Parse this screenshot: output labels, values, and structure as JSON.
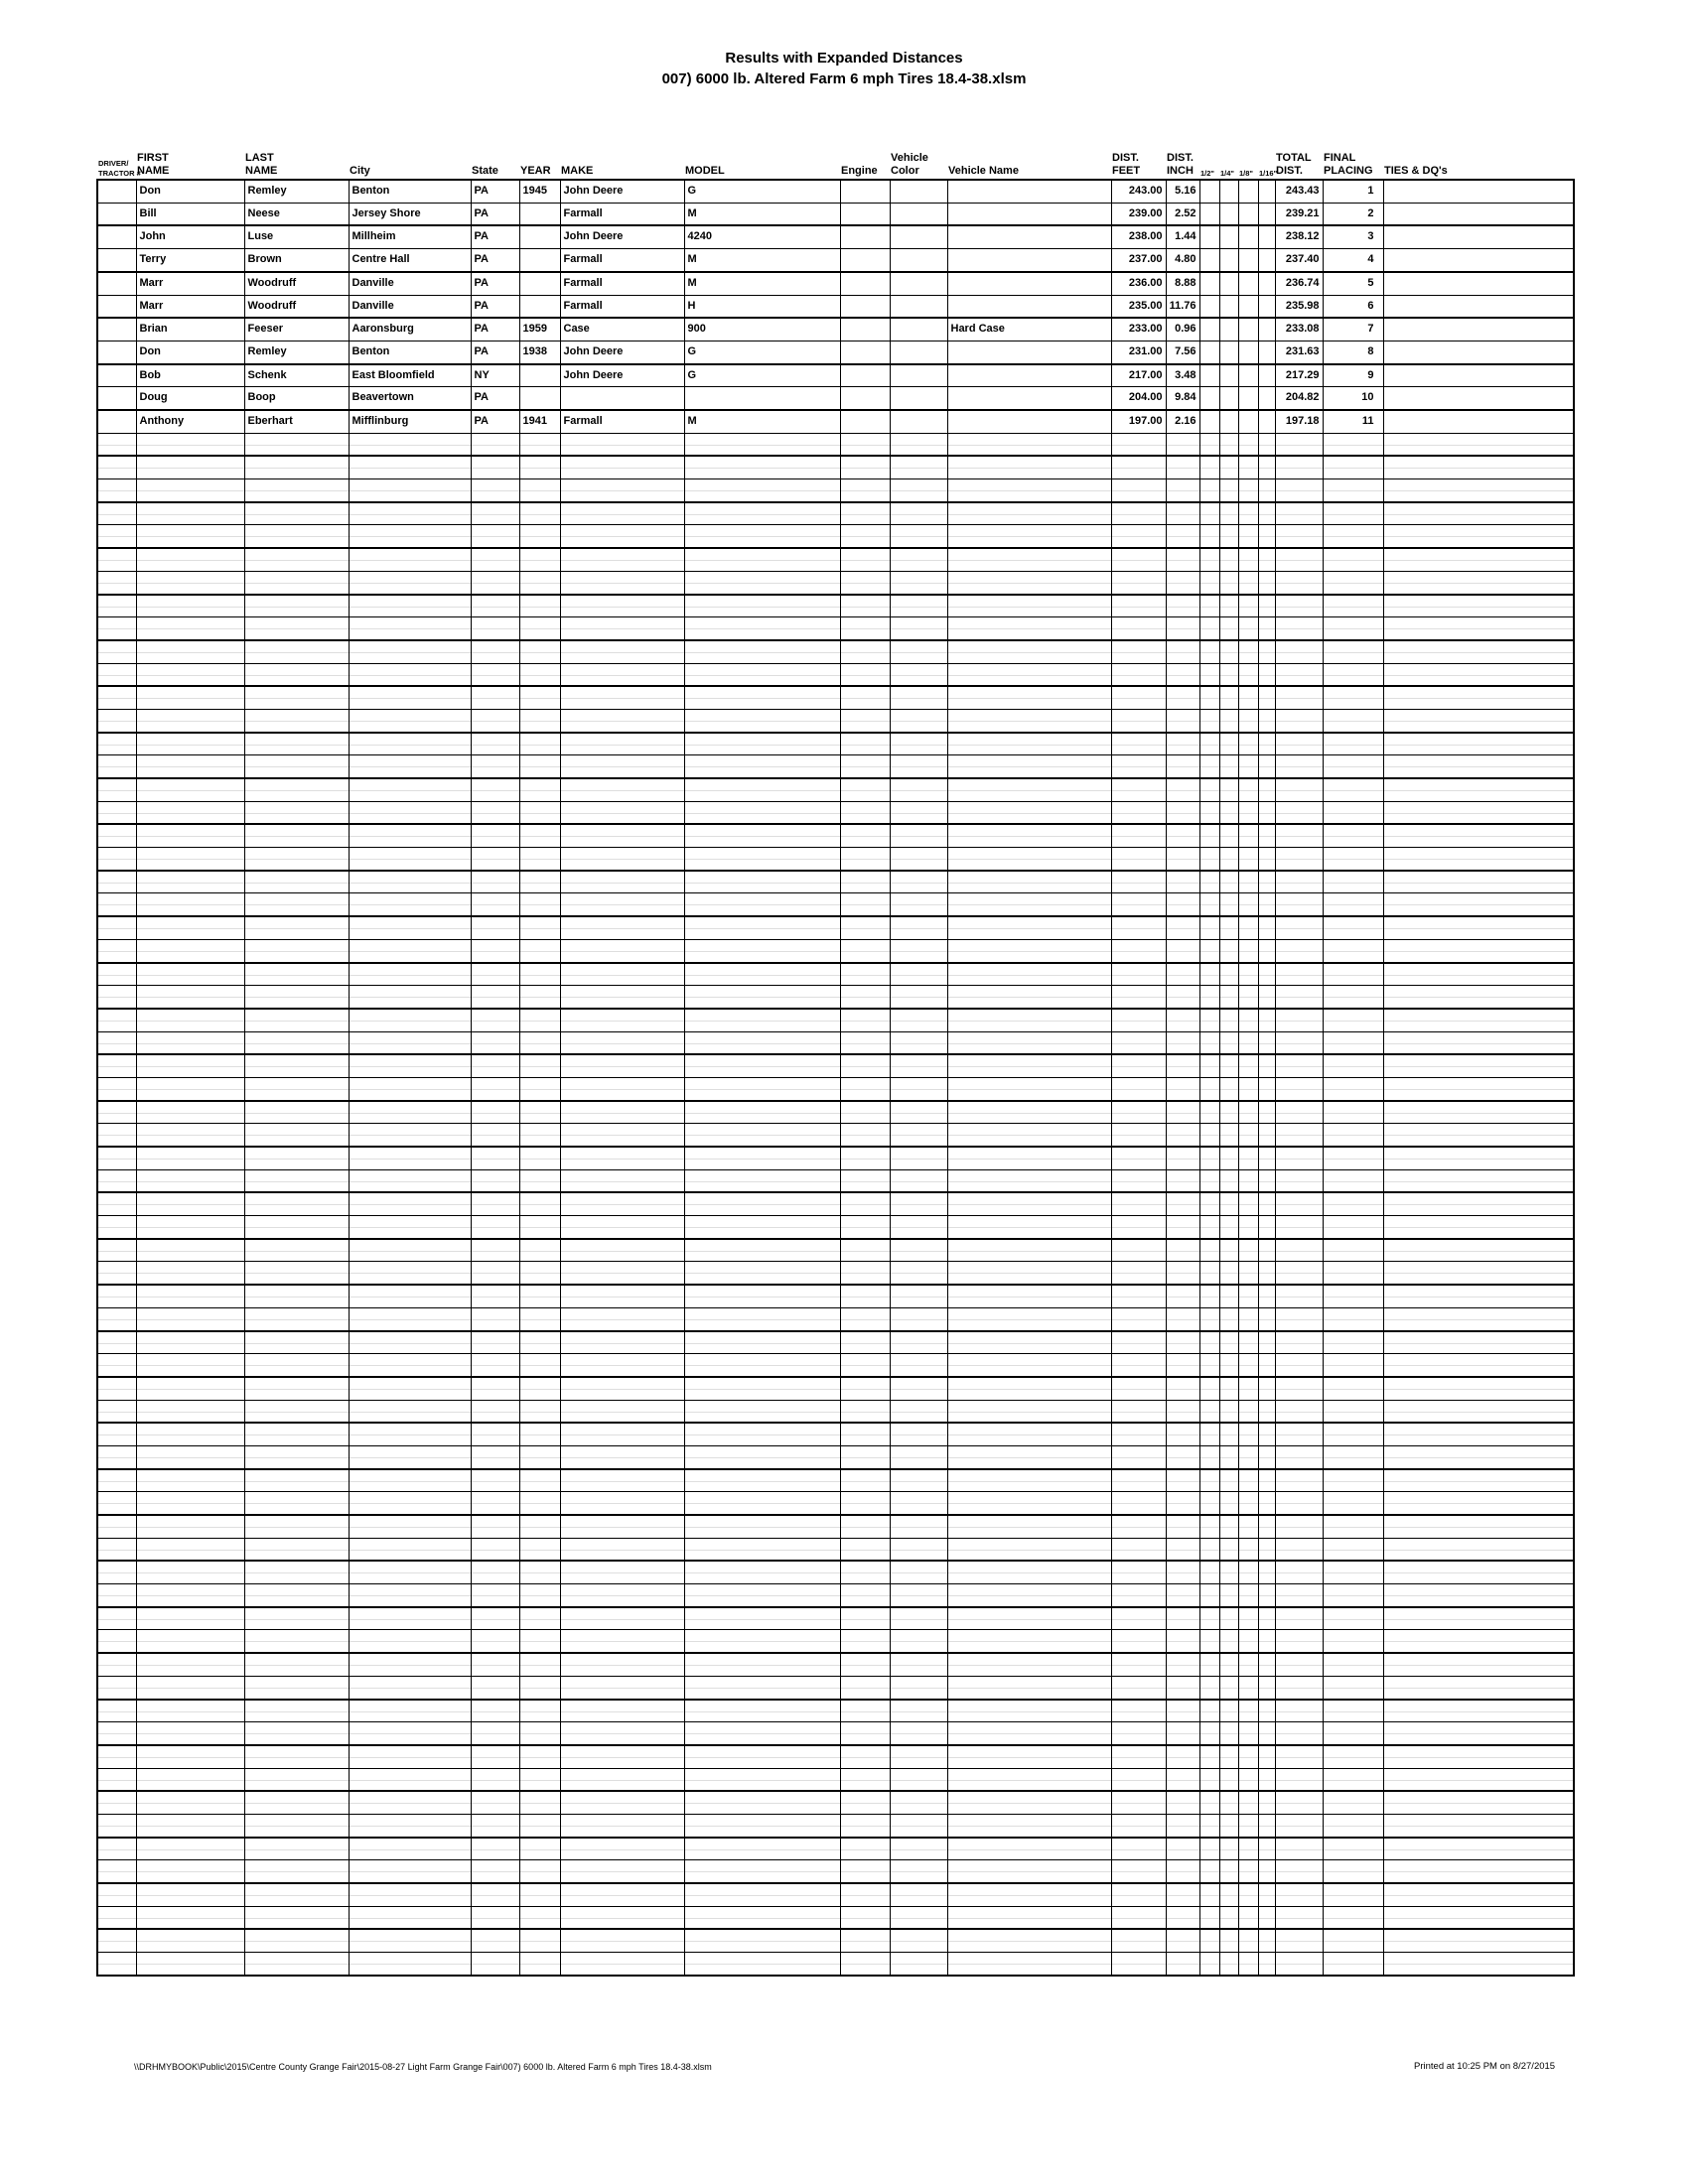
{
  "title": {
    "line1": "Results with Expanded Distances",
    "line2": "007) 6000 lb. Altered Farm 6 mph Tires 18.4-38.xlsm"
  },
  "table": {
    "columns": [
      {
        "key": "id",
        "label": "DRIVER/\nTRACTOR #",
        "width": 39,
        "align": "l",
        "tiny": true
      },
      {
        "key": "first",
        "label": "FIRST\nNAME",
        "width": 109,
        "align": "l",
        "tiny": false
      },
      {
        "key": "last",
        "label": "LAST\nNAME",
        "width": 105,
        "align": "l",
        "tiny": false
      },
      {
        "key": "city",
        "label": "City",
        "width": 123,
        "align": "l",
        "tiny": false
      },
      {
        "key": "state",
        "label": "State",
        "width": 49,
        "align": "l",
        "tiny": false
      },
      {
        "key": "year",
        "label": "YEAR",
        "width": 41,
        "align": "l",
        "tiny": false
      },
      {
        "key": "make",
        "label": "MAKE",
        "width": 125,
        "align": "l",
        "tiny": false
      },
      {
        "key": "model",
        "label": "MODEL",
        "width": 157,
        "align": "l",
        "tiny": false
      },
      {
        "key": "engine",
        "label": "Engine",
        "width": 50,
        "align": "l",
        "tiny": false
      },
      {
        "key": "color",
        "label": "Vehicle\nColor",
        "width": 58,
        "align": "l",
        "tiny": false
      },
      {
        "key": "name",
        "label": "Vehicle Name",
        "width": 165,
        "align": "l",
        "tiny": false
      },
      {
        "key": "feet",
        "label": "DIST.\nFEET",
        "width": 55,
        "align": "r",
        "tiny": false
      },
      {
        "key": "inch",
        "label": "DIST.\nINCH",
        "width": 34,
        "align": "r",
        "tiny": false
      },
      {
        "key": "half",
        "label": "1/2\"",
        "width": 20,
        "align": "l",
        "tiny": true
      },
      {
        "key": "quarter",
        "label": "1/4\"",
        "width": 19,
        "align": "l",
        "tiny": true
      },
      {
        "key": "eighth",
        "label": "1/8\"",
        "width": 20,
        "align": "l",
        "tiny": true
      },
      {
        "key": "sixteenth",
        "label": "1/16\"",
        "width": 17,
        "align": "l",
        "tiny": true
      },
      {
        "key": "total",
        "label": "TOTAL\nDIST.",
        "width": 48,
        "align": "r",
        "tiny": false
      },
      {
        "key": "placing",
        "label": "FINAL\nPLACING",
        "width": 61,
        "align": "r",
        "tiny": false
      },
      {
        "key": "ties",
        "label": "TIES & DQ's",
        "width": 192,
        "align": "l",
        "tiny": false
      }
    ],
    "rows": [
      {
        "id": "",
        "first": "Don",
        "last": "Remley",
        "city": "Benton",
        "state": "PA",
        "year": "1945",
        "make": "John Deere",
        "model": "G",
        "engine": "",
        "color": "",
        "name": "",
        "feet": "243.00",
        "inch": "5.16",
        "half": "",
        "quarter": "",
        "eighth": "",
        "sixteenth": "",
        "total": "243.43",
        "placing": "1",
        "ties": ""
      },
      {
        "id": "",
        "first": "Bill",
        "last": "Neese",
        "city": "Jersey Shore",
        "state": "PA",
        "year": "",
        "make": "Farmall",
        "model": "M",
        "engine": "",
        "color": "",
        "name": "",
        "feet": "239.00",
        "inch": "2.52",
        "half": "",
        "quarter": "",
        "eighth": "",
        "sixteenth": "",
        "total": "239.21",
        "placing": "2",
        "ties": ""
      },
      {
        "id": "",
        "first": "John",
        "last": "Luse",
        "city": "Millheim",
        "state": "PA",
        "year": "",
        "make": "John Deere",
        "model": "4240",
        "engine": "",
        "color": "",
        "name": "",
        "feet": "238.00",
        "inch": "1.44",
        "half": "",
        "quarter": "",
        "eighth": "",
        "sixteenth": "",
        "total": "238.12",
        "placing": "3",
        "ties": ""
      },
      {
        "id": "",
        "first": "Terry",
        "last": "Brown",
        "city": "Centre Hall",
        "state": "PA",
        "year": "",
        "make": "Farmall",
        "model": "M",
        "engine": "",
        "color": "",
        "name": "",
        "feet": "237.00",
        "inch": "4.80",
        "half": "",
        "quarter": "",
        "eighth": "",
        "sixteenth": "",
        "total": "237.40",
        "placing": "4",
        "ties": ""
      },
      {
        "id": "",
        "first": "Marr",
        "last": "Woodruff",
        "city": "Danville",
        "state": "PA",
        "year": "",
        "make": "Farmall",
        "model": "M",
        "engine": "",
        "color": "",
        "name": "",
        "feet": "236.00",
        "inch": "8.88",
        "half": "",
        "quarter": "",
        "eighth": "",
        "sixteenth": "",
        "total": "236.74",
        "placing": "5",
        "ties": ""
      },
      {
        "id": "",
        "first": "Marr",
        "last": "Woodruff",
        "city": "Danville",
        "state": "PA",
        "year": "",
        "make": "Farmall",
        "model": "H",
        "engine": "",
        "color": "",
        "name": "",
        "feet": "235.00",
        "inch": "11.76",
        "half": "",
        "quarter": "",
        "eighth": "",
        "sixteenth": "",
        "total": "235.98",
        "placing": "6",
        "ties": ""
      },
      {
        "id": "",
        "first": "Brian",
        "last": "Feeser",
        "city": "Aaronsburg",
        "state": "PA",
        "year": "1959",
        "make": "Case",
        "model": "900",
        "engine": "",
        "color": "",
        "name": "Hard Case",
        "feet": "233.00",
        "inch": "0.96",
        "half": "",
        "quarter": "",
        "eighth": "",
        "sixteenth": "",
        "total": "233.08",
        "placing": "7",
        "ties": ""
      },
      {
        "id": "",
        "first": "Don",
        "last": "Remley",
        "city": "Benton",
        "state": "PA",
        "year": "1938",
        "make": "John Deere",
        "model": "G",
        "engine": "",
        "color": "",
        "name": "",
        "feet": "231.00",
        "inch": "7.56",
        "half": "",
        "quarter": "",
        "eighth": "",
        "sixteenth": "",
        "total": "231.63",
        "placing": "8",
        "ties": ""
      },
      {
        "id": "",
        "first": "Bob",
        "last": "Schenk",
        "city": "East Bloomfield",
        "state": "NY",
        "year": "",
        "make": "John Deere",
        "model": "G",
        "engine": "",
        "color": "",
        "name": "",
        "feet": "217.00",
        "inch": "3.48",
        "half": "",
        "quarter": "",
        "eighth": "",
        "sixteenth": "",
        "total": "217.29",
        "placing": "9",
        "ties": ""
      },
      {
        "id": "",
        "first": "Doug",
        "last": "Boop",
        "city": "Beavertown",
        "state": "PA",
        "year": "",
        "make": "",
        "model": "",
        "engine": "",
        "color": "",
        "name": "",
        "feet": "204.00",
        "inch": "9.84",
        "half": "",
        "quarter": "",
        "eighth": "",
        "sixteenth": "",
        "total": "204.82",
        "placing": "10",
        "ties": ""
      },
      {
        "id": "",
        "first": "Anthony",
        "last": "Eberhart",
        "city": "Mifflinburg",
        "state": "PA",
        "year": "1941",
        "make": "Farmall",
        "model": "M",
        "engine": "",
        "color": "",
        "name": "",
        "feet": "197.00",
        "inch": "2.16",
        "half": "",
        "quarter": "",
        "eighth": "",
        "sixteenth": "",
        "total": "197.18",
        "placing": "11",
        "ties": ""
      }
    ],
    "empty_row_count": 67
  },
  "footer": {
    "left": "\\\\DRHMYBOOK\\Public\\2015\\Centre County Grange Fair\\2015-08-27 Light Farm Grange Fair\\007) 6000 lb. Altered Farm 6 mph Tires 18.4-38.xlsm",
    "right": "Printed at 10:25 PM on 8/27/2015"
  }
}
